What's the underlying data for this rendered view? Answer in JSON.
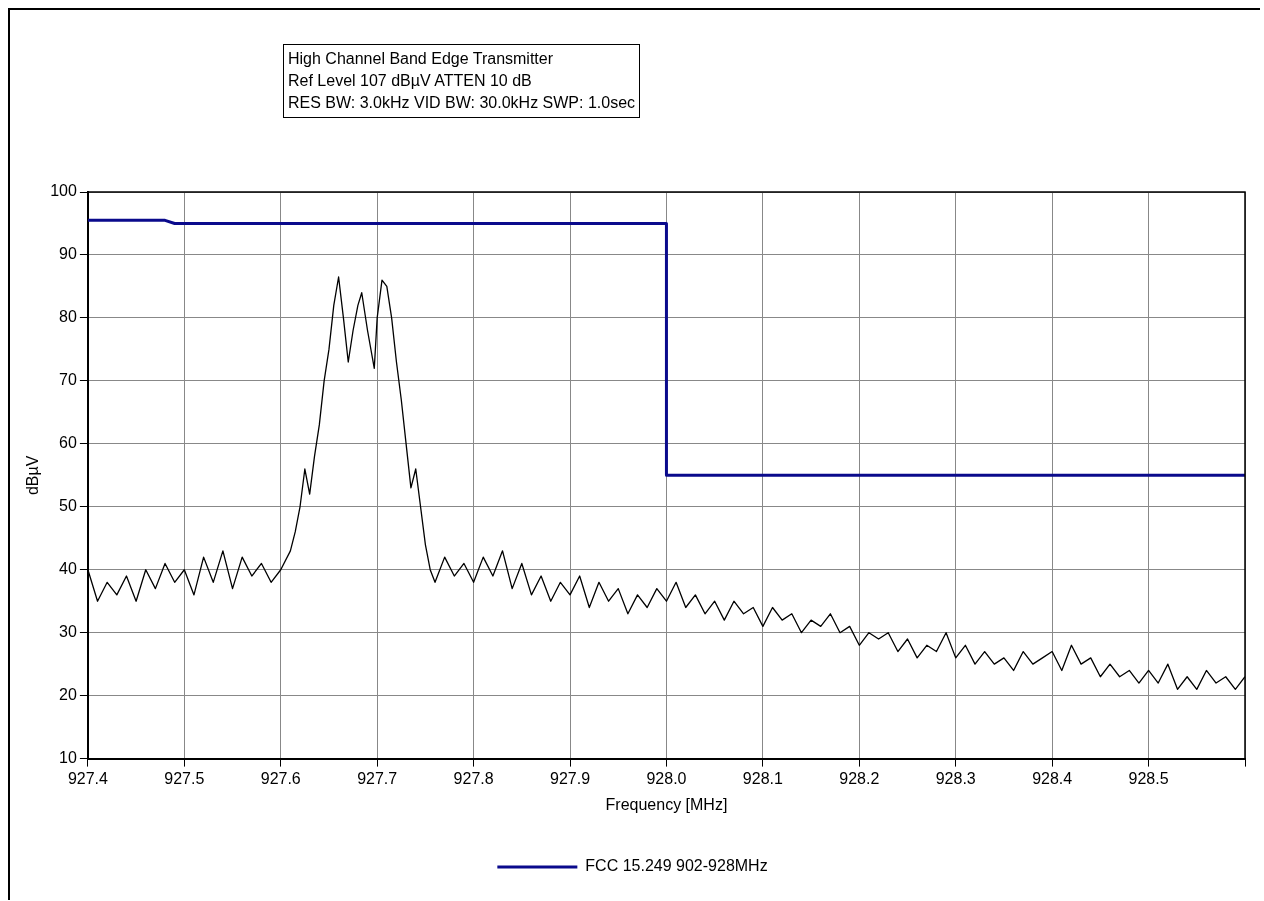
{
  "chart_data": {
    "type": "line",
    "title": "High Channel Band Edge Transmitter",
    "annotations": [
      "Ref Level 107 dBµV    ATTEN 10 dB",
      "RES BW: 3.0kHz  VID BW: 30.0kHz  SWP: 1.0sec"
    ],
    "xlabel": "Frequency [MHz]",
    "ylabel": "dBµV",
    "xlim": [
      927.4,
      928.6
    ],
    "xticks": [
      927.4,
      927.5,
      927.6,
      927.7,
      927.8,
      927.9,
      {
        "value": 928.0,
        "label": "928.0"
      },
      928.1,
      928.2,
      928.3,
      928.4,
      928.5,
      {
        "value": 928.6,
        "label": null
      }
    ],
    "ylim": [
      10,
      100
    ],
    "yticks": [
      10,
      20,
      30,
      40,
      50,
      60,
      70,
      80,
      90,
      100
    ],
    "grid": true,
    "legend": "bottom",
    "marker": "none",
    "line_style": "solid",
    "series": [
      {
        "color": "#000000",
        "x": [
          927.4,
          927.41,
          927.42,
          927.43,
          927.44,
          927.45,
          927.46,
          927.47,
          927.48,
          927.49,
          927.5,
          927.51,
          927.52,
          927.53,
          927.54,
          927.55,
          927.56,
          927.57,
          927.58,
          927.59,
          927.6,
          927.61,
          927.615,
          927.62,
          927.625,
          927.63,
          927.635,
          927.64,
          927.645,
          927.65,
          927.655,
          927.66,
          927.665,
          927.67,
          927.675,
          927.68,
          927.684,
          927.69,
          927.697,
          927.7,
          927.705,
          927.71,
          927.715,
          927.72,
          927.725,
          927.73,
          927.735,
          927.74,
          927.745,
          927.75,
          927.755,
          927.76,
          927.77,
          927.78,
          927.79,
          927.8,
          927.81,
          927.82,
          927.83,
          927.84,
          927.85,
          927.86,
          927.87,
          927.88,
          927.89,
          927.9,
          927.91,
          927.92,
          927.93,
          927.94,
          927.95,
          927.96,
          927.97,
          927.98,
          927.99,
          928.0,
          928.01,
          928.02,
          928.03,
          928.04,
          928.05,
          928.06,
          928.07,
          928.08,
          928.09,
          928.1,
          928.11,
          928.12,
          928.13,
          928.14,
          928.15,
          928.16,
          928.17,
          928.18,
          928.19,
          928.2,
          928.21,
          928.22,
          928.23,
          928.24,
          928.25,
          928.26,
          928.27,
          928.28,
          928.29,
          928.3,
          928.31,
          928.32,
          928.33,
          928.34,
          928.35,
          928.36,
          928.37,
          928.38,
          928.39,
          928.4,
          928.41,
          928.42,
          928.43,
          928.44,
          928.45,
          928.46,
          928.47,
          928.48,
          928.49,
          928.5,
          928.51,
          928.52,
          928.53,
          928.54,
          928.55,
          928.56,
          928.57,
          928.58,
          928.59,
          928.6
        ],
        "values": [
          40,
          35,
          38,
          36,
          39,
          35,
          40,
          37,
          41,
          38,
          40,
          36,
          42,
          38,
          43,
          37,
          42,
          39,
          41,
          38,
          40,
          43,
          46,
          50,
          56,
          52,
          58,
          63,
          70,
          75,
          82,
          86.5,
          80,
          73,
          78,
          82,
          84,
          78,
          72,
          80,
          86,
          85,
          80,
          73,
          67,
          60,
          53,
          56,
          50,
          44,
          40,
          38,
          42,
          39,
          41,
          38,
          42,
          39,
          43,
          37,
          41,
          36,
          39,
          35,
          38,
          36,
          39,
          34,
          38,
          35,
          37,
          33,
          36,
          34,
          37,
          35,
          38,
          34,
          36,
          33,
          35,
          32,
          35,
          33,
          34,
          31,
          34,
          32,
          33,
          30,
          32,
          31,
          33,
          30,
          31,
          28,
          30,
          29,
          30,
          27,
          29,
          26,
          28,
          27,
          30,
          26,
          28,
          25,
          27,
          25,
          26,
          24,
          27,
          25,
          26,
          27,
          24,
          28,
          25,
          26,
          23,
          25,
          23,
          24,
          22,
          24,
          22,
          25,
          21,
          23,
          21,
          24,
          22,
          23,
          21,
          23
        ]
      },
      {
        "name": "FCC 15.249 902-928MHz",
        "color": "#0a0a8c",
        "x": [
          927.4,
          927.48,
          927.49,
          928.0,
          928.0,
          928.6
        ],
        "values": [
          95.5,
          95.5,
          95,
          95,
          55,
          55
        ]
      }
    ]
  }
}
